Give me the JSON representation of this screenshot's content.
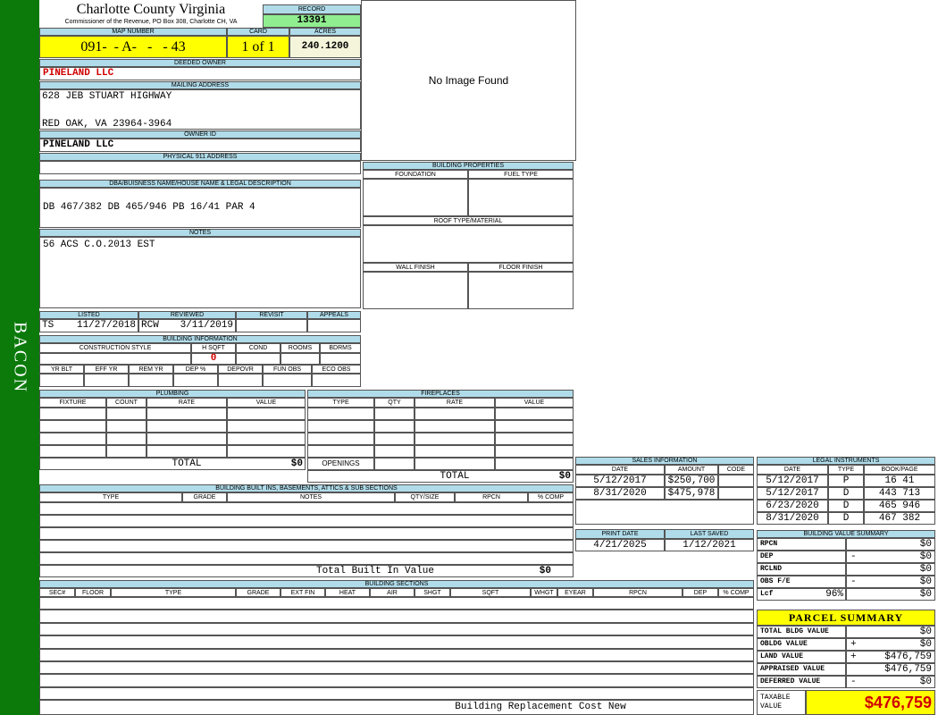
{
  "sidebar": "BACON",
  "header": {
    "title": "Charlotte County Virginia",
    "subtitle": "Commissioner of the Revenue, PO Box 308, Charlotte CH, VA"
  },
  "record": {
    "label": "RECORD",
    "value": "13391"
  },
  "map_number": {
    "label": "MAP NUMBER",
    "value": "091-  - A-   -   - 43"
  },
  "card": {
    "label": "CARD",
    "value": "1 of 1"
  },
  "acres": {
    "label": "ACRES",
    "value": "240.1200"
  },
  "image": "No Image Found",
  "deeded_owner": {
    "label": "DEEDED OWNER",
    "value": "PINELAND LLC"
  },
  "mailing_address": {
    "label": "MAILING ADDRESS",
    "lines": [
      "628 JEB STUART HIGHWAY",
      "RED OAK, VA 23964-3964"
    ]
  },
  "owner_id": {
    "label": "OWNER ID",
    "value": "PINELAND LLC"
  },
  "physical_address": {
    "label": "PHYSICAL 911 ADDRESS"
  },
  "legal_description": {
    "label": "DBA/BUISNESS NAME/HOUSE NAME & LEGAL DESCRIPTION",
    "value": "DB 467/382 DB 465/946 PB 16/41 PAR 4"
  },
  "notes": {
    "label": "NOTES",
    "value": "56 ACS C.O.2013 EST"
  },
  "review": {
    "headers": [
      "LISTED",
      "REVIEWED",
      "REVISIT",
      "APPEALS"
    ],
    "listed": [
      "TS",
      "11/27/2018"
    ],
    "reviewed": [
      "RCW",
      "3/11/2019"
    ]
  },
  "building_information": {
    "label": "BUILDING INFORMATION",
    "headers": [
      "CONSTRUCTION STYLE",
      "H SQFT",
      "COND",
      "ROOMS",
      "BDRMS"
    ],
    "hsqft": "0",
    "headers2": [
      "YR BLT",
      "EFF YR",
      "REM YR",
      "DEP %",
      "DEPOVR",
      "FUN OBS",
      "ECO OBS"
    ]
  },
  "building_properties": {
    "label": "BUILDING PROPERTIES",
    "foundation": "FOUNDATION",
    "fuel": "FUEL TYPE",
    "roof": "ROOF TYPE/MATERIAL",
    "wall": "WALL FINISH",
    "floor": "FLOOR FINISH"
  },
  "plumbing": {
    "label": "PLUMBING",
    "headers": [
      "FIXTURE",
      "COUNT",
      "RATE",
      "VALUE"
    ],
    "total_label": "TOTAL",
    "total": "$0"
  },
  "fireplaces": {
    "label": "FIREPLACES",
    "headers": [
      "TYPE",
      "QTY",
      "RATE",
      "VALUE"
    ],
    "openings": "OPENINGS",
    "total_label": "TOTAL",
    "total": "$0"
  },
  "built_ins": {
    "label": "BUILDING BUILT INS, BASEMENTS, ATTICS & SUB SECTIONS",
    "headers": [
      "TYPE",
      "GRADE",
      "NOTES",
      "QTY/SIZE",
      "RPCN",
      "% COMP"
    ],
    "total_label": "Total Built In Value",
    "total": "$0"
  },
  "building_sections": {
    "label": "BUILDING SECTIONS",
    "headers": [
      "SEC#",
      "FLOOR",
      "TYPE",
      "GRADE",
      "EXT FIN",
      "HEAT",
      "AIR",
      "SHGT",
      "SQFT",
      "WHGT",
      "EYEAR",
      "RPCN",
      "DEP",
      "% COMP"
    ],
    "footer": "Building Replacement Cost New"
  },
  "sales": {
    "label": "SALES INFORMATION",
    "headers": [
      "DATE",
      "AMOUNT",
      "CODE"
    ],
    "rows": [
      [
        "5/12/2017",
        "$250,700"
      ],
      [
        "8/31/2020",
        "$475,978"
      ]
    ]
  },
  "print": {
    "headers": [
      "PRINT DATE",
      "LAST SAVED"
    ],
    "values": [
      "4/21/2025",
      "1/12/2021"
    ]
  },
  "legal_instruments": {
    "label": "LEGAL INSTRUMENTS",
    "headers": [
      "DATE",
      "TYPE",
      "BOOK/PAGE"
    ],
    "rows": [
      [
        "5/12/2017",
        "P",
        "16 41"
      ],
      [
        "5/12/2017",
        "D",
        "443 713"
      ],
      [
        "6/23/2020",
        "D",
        "465 946"
      ],
      [
        "8/31/2020",
        "D",
        "467 382"
      ]
    ]
  },
  "building_value_summary": {
    "label": "BUILDING VALUE SUMMARY",
    "rows": [
      {
        "label": "RPCN",
        "value": "$0"
      },
      {
        "label": "DEP",
        "sign": "-",
        "value": "$0"
      },
      {
        "label": "RCLND",
        "value": "$0"
      },
      {
        "label": "OBS F/E",
        "sign": "-",
        "value": "$0"
      },
      {
        "label": "Lcf",
        "pct": "96%",
        "value": "$0"
      }
    ]
  },
  "parcel_summary": {
    "label": "PARCEL SUMMARY",
    "rows": [
      {
        "label": "TOTAL BLDG VALUE",
        "value": "$0"
      },
      {
        "label": "OBLDG VALUE",
        "sign": "+",
        "value": "$0"
      },
      {
        "label": "LAND VALUE",
        "sign": "+",
        "value": "$476,759"
      },
      {
        "label": "APPRAISED VALUE",
        "value": "$476,759"
      },
      {
        "label": "DEFERRED VALUE",
        "sign": "-",
        "value": "$0"
      }
    ],
    "taxable_label": "TAXABLE VALUE",
    "taxable": "$476,759"
  }
}
